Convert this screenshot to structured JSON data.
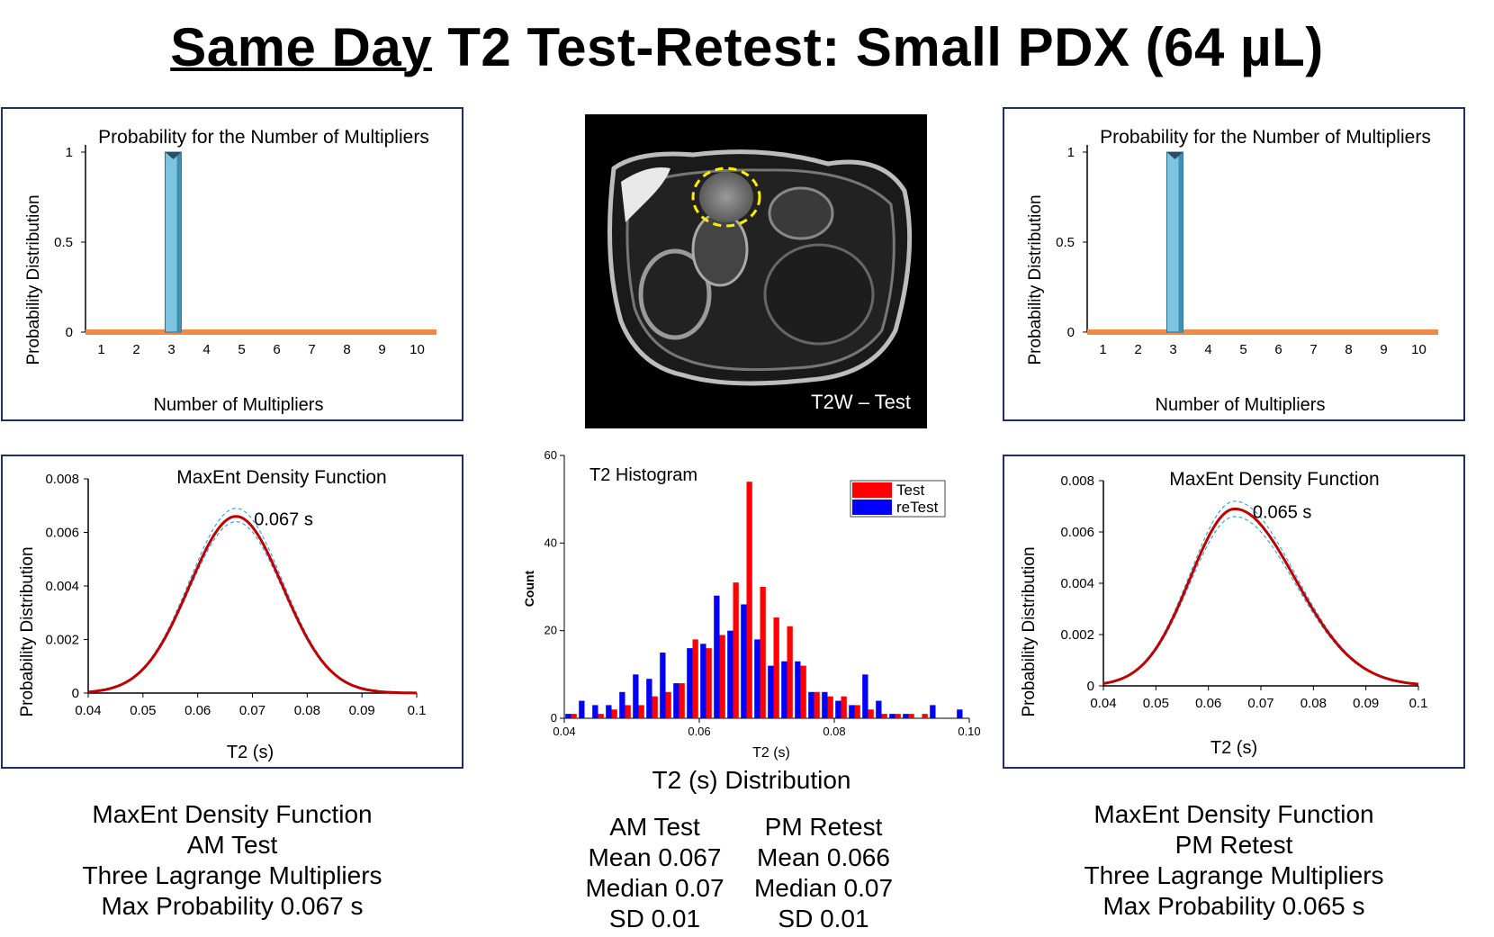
{
  "title": {
    "underlined": "Same Day",
    "rest": " T2 Test-Retest: Small PDX (64 µL)"
  },
  "colors": {
    "panel_border": "#1f2e66",
    "bar": "#7cc4e0",
    "baseline": "#f08a4b",
    "curve": "#c00000",
    "ci": "#3aa6dd",
    "test": "#ff0000",
    "retest": "#0000ff"
  },
  "prob_left": {
    "title": "Probability for the Number of Multipliers",
    "ylabel": "Probability Distribution",
    "xlabel": "Number of Multipliers",
    "yticks": [
      "0",
      "0.5",
      "1"
    ],
    "xticks": [
      "1",
      "2",
      "3",
      "4",
      "5",
      "6",
      "7",
      "8",
      "9",
      "10"
    ]
  },
  "prob_right": {
    "title": "Probability for the Number of Multipliers",
    "ylabel": "Probability Distribution",
    "xlabel": "Number of Multipliers",
    "yticks": [
      "0",
      "0.5",
      "1"
    ],
    "xticks": [
      "1",
      "2",
      "3",
      "4",
      "5",
      "6",
      "7",
      "8",
      "9",
      "10"
    ]
  },
  "maxent_left": {
    "title": "MaxEnt Density Function",
    "ylabel": "Probability Distribution",
    "xlabel": "T2 (s)",
    "yticks": [
      "0",
      "0.002",
      "0.004",
      "0.006",
      "0.008"
    ],
    "xticks": [
      "0.04",
      "0.05",
      "0.06",
      "0.07",
      "0.08",
      "0.09",
      "0.1"
    ],
    "peak_label": "0.067 s"
  },
  "maxent_right": {
    "title": "MaxEnt Density Function",
    "ylabel": "Probability Distribution",
    "xlabel": "T2 (s)",
    "yticks": [
      "0",
      "0.002",
      "0.004",
      "0.006",
      "0.008"
    ],
    "xticks": [
      "0.04",
      "0.05",
      "0.06",
      "0.07",
      "0.08",
      "0.09",
      "0.1"
    ],
    "peak_label": "0.065 s"
  },
  "mri": {
    "label": "T2W – Test"
  },
  "histogram": {
    "title": "T2 Histogram",
    "ylabel": "Count",
    "xlabel": "T2 (s)",
    "yticks": [
      "0",
      "20",
      "40",
      "60"
    ],
    "xticks": [
      "0.04",
      "0.06",
      "0.08",
      "0.10"
    ],
    "legend": [
      "Test",
      "reTest"
    ]
  },
  "hist_caption": "T2 (s) Distribution",
  "caption_left": [
    "MaxEnt Density Function",
    "AM Test",
    "Three Lagrange Multipliers",
    "Max Probability 0.067 s"
  ],
  "caption_right": [
    "MaxEnt Density Function",
    "PM Retest",
    "Three Lagrange Multipliers",
    "Max Probability 0.065 s"
  ],
  "stats": {
    "am": [
      "AM Test",
      "Mean 0.067",
      "Median 0.07",
      "SD 0.01"
    ],
    "pm": [
      "PM Retest",
      "Mean 0.066",
      "Median 0.07",
      "SD 0.01"
    ]
  },
  "chart_data": [
    {
      "id": "prob_left",
      "type": "bar",
      "title": "Probability for the Number of Multipliers",
      "xlabel": "Number of Multipliers",
      "ylabel": "Probability Distribution",
      "categories": [
        1,
        2,
        3,
        4,
        5,
        6,
        7,
        8,
        9,
        10
      ],
      "values": [
        0,
        0,
        1,
        0,
        0,
        0,
        0,
        0,
        0,
        0
      ],
      "ylim": [
        0,
        1
      ]
    },
    {
      "id": "prob_right",
      "type": "bar",
      "title": "Probability for the Number of Multipliers",
      "xlabel": "Number of Multipliers",
      "ylabel": "Probability Distribution",
      "categories": [
        1,
        2,
        3,
        4,
        5,
        6,
        7,
        8,
        9,
        10
      ],
      "values": [
        0,
        0,
        1,
        0,
        0,
        0,
        0,
        0,
        0,
        0
      ],
      "ylim": [
        0,
        1
      ]
    },
    {
      "id": "maxent_left",
      "type": "line",
      "title": "MaxEnt Density Function",
      "xlabel": "T2 (s)",
      "ylabel": "Probability Distribution",
      "xlim": [
        0.04,
        0.1
      ],
      "ylim": [
        0,
        0.008
      ],
      "peak": 0.067,
      "peak_value": 0.0066,
      "sigma": 0.0085,
      "series": [
        {
          "name": "density",
          "peak_value": 0.0066
        },
        {
          "name": "upper bound",
          "peak_value": 0.0069
        },
        {
          "name": "lower bound",
          "peak_value": 0.0064
        }
      ]
    },
    {
      "id": "maxent_right",
      "type": "line",
      "title": "MaxEnt Density Function",
      "xlabel": "T2 (s)",
      "ylabel": "Probability Distribution",
      "xlim": [
        0.04,
        0.1
      ],
      "ylim": [
        0,
        0.008
      ],
      "peak": 0.065,
      "peak_value": 0.0069,
      "sigma_left": 0.0085,
      "sigma_right": 0.0115,
      "series": [
        {
          "name": "density",
          "peak_value": 0.0069
        },
        {
          "name": "upper bound",
          "peak_value": 0.0072
        },
        {
          "name": "lower bound",
          "peak_value": 0.0066
        }
      ]
    },
    {
      "id": "histogram",
      "type": "bar",
      "title": "T2 Histogram",
      "xlabel": "T2 (s)",
      "ylabel": "Count",
      "xlim": [
        0.04,
        0.1
      ],
      "ylim": [
        0,
        60
      ],
      "bin_width": 0.002,
      "series": [
        {
          "name": "Test",
          "x": [
            0.041,
            0.045,
            0.047,
            0.049,
            0.051,
            0.053,
            0.055,
            0.057,
            0.059,
            0.061,
            0.063,
            0.065,
            0.067,
            0.069,
            0.071,
            0.073,
            0.075,
            0.077,
            0.079,
            0.081,
            0.083,
            0.085,
            0.087,
            0.089,
            0.091,
            0.093
          ],
          "values": [
            1,
            1,
            2,
            3,
            3,
            5,
            6,
            8,
            18,
            16,
            19,
            31,
            54,
            30,
            23,
            21,
            12,
            6,
            5,
            5,
            3,
            2,
            1,
            1,
            1,
            1
          ]
        },
        {
          "name": "reTest",
          "x": [
            0.041,
            0.043,
            0.045,
            0.047,
            0.049,
            0.051,
            0.053,
            0.055,
            0.057,
            0.059,
            0.061,
            0.063,
            0.065,
            0.067,
            0.069,
            0.071,
            0.073,
            0.075,
            0.077,
            0.079,
            0.081,
            0.083,
            0.085,
            0.087,
            0.089,
            0.091,
            0.095,
            0.099
          ],
          "values": [
            1,
            4,
            3,
            3,
            6,
            10,
            9,
            15,
            8,
            16,
            17,
            28,
            20,
            26,
            18,
            12,
            13,
            13,
            6,
            6,
            4,
            3,
            10,
            4,
            1,
            1,
            3,
            2
          ]
        }
      ]
    }
  ]
}
